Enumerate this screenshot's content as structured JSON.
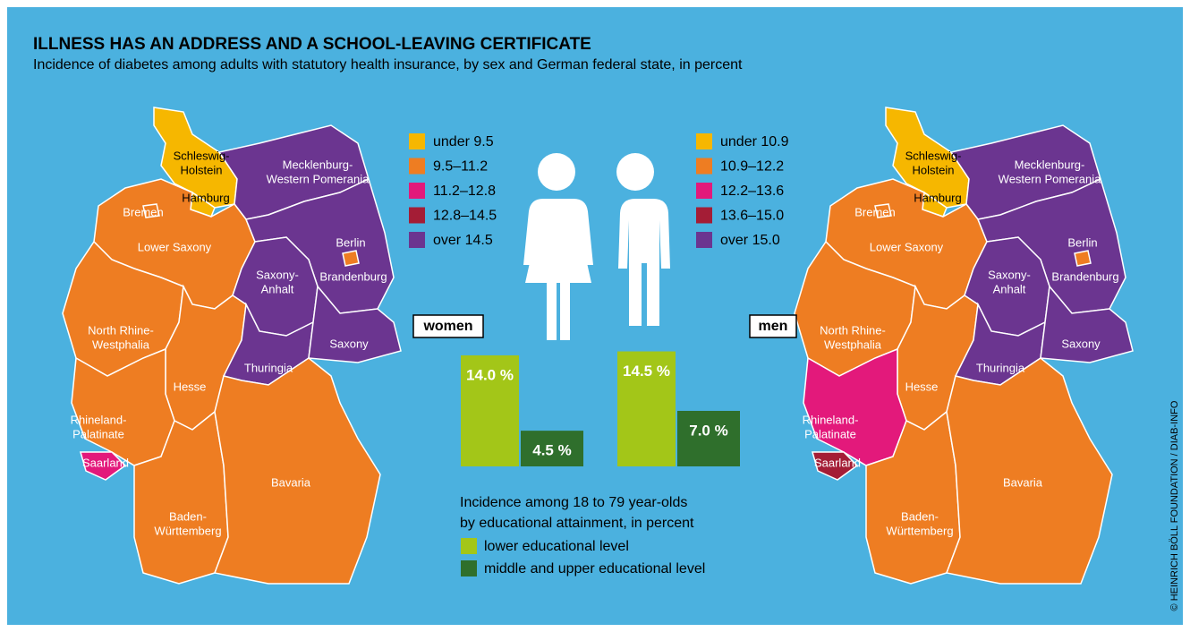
{
  "title": "ILLNESS HAS AN ADDRESS AND A SCHOOL-LEAVING CERTIFICATE",
  "subtitle": "Incidence of diabetes among adults with statutory health insurance, by sex and German federal state, in percent",
  "maps": [
    {
      "label": "women",
      "legend": [
        {
          "label": "under 9.5",
          "color": "#f6b700"
        },
        {
          "label": "9.5–11.2",
          "color": "#ee7d22"
        },
        {
          "label": "11.2–12.8",
          "color": "#e3197b"
        },
        {
          "label": "12.8–14.5",
          "color": "#a41d36"
        },
        {
          "label": "over 14.5",
          "color": "#6b3590"
        }
      ],
      "states": [
        {
          "name": [
            "Schleswig-",
            "Holstein"
          ],
          "class": 0
        },
        {
          "name": [
            "Hamburg"
          ],
          "class": 0
        },
        {
          "name": [
            "Mecklenburg-",
            "Western Pomerania"
          ],
          "class": 4
        },
        {
          "name": [
            "Lower Saxony"
          ],
          "class": 1
        },
        {
          "name": [
            "Bremen"
          ],
          "class": 1
        },
        {
          "name": [
            "Brandenburg"
          ],
          "class": 4
        },
        {
          "name": [
            "Berlin"
          ],
          "class": 1
        },
        {
          "name": [
            "Saxony-",
            "Anhalt"
          ],
          "class": 4
        },
        {
          "name": [
            "North Rhine-",
            "Westphalia"
          ],
          "class": 1
        },
        {
          "name": [
            "Hesse"
          ],
          "class": 1
        },
        {
          "name": [
            "Thuringia"
          ],
          "class": 4
        },
        {
          "name": [
            "Saxony"
          ],
          "class": 4
        },
        {
          "name": [
            "Rhineland-",
            "Palatinate"
          ],
          "class": 1
        },
        {
          "name": [
            "Saarland"
          ],
          "class": 2
        },
        {
          "name": [
            "Baden-",
            "Württemberg"
          ],
          "class": 1
        },
        {
          "name": [
            "Bavaria"
          ],
          "class": 1
        }
      ]
    },
    {
      "label": "men",
      "legend": [
        {
          "label": "under 10.9",
          "color": "#f6b700"
        },
        {
          "label": "10.9–12.2",
          "color": "#ee7d22"
        },
        {
          "label": "12.2–13.6",
          "color": "#e3197b"
        },
        {
          "label": "13.6–15.0",
          "color": "#a41d36"
        },
        {
          "label": "over 15.0",
          "color": "#6b3590"
        }
      ],
      "states": [
        {
          "name": [
            "Schleswig-",
            "Holstein"
          ],
          "class": 0
        },
        {
          "name": [
            "Hamburg"
          ],
          "class": 0
        },
        {
          "name": [
            "Mecklenburg-",
            "Western Pomerania"
          ],
          "class": 4
        },
        {
          "name": [
            "Lower Saxony"
          ],
          "class": 1
        },
        {
          "name": [
            "Bremen"
          ],
          "class": 1
        },
        {
          "name": [
            "Brandenburg"
          ],
          "class": 4
        },
        {
          "name": [
            "Berlin"
          ],
          "class": 1
        },
        {
          "name": [
            "Saxony-",
            "Anhalt"
          ],
          "class": 4
        },
        {
          "name": [
            "North Rhine-",
            "Westphalia"
          ],
          "class": 1
        },
        {
          "name": [
            "Hesse"
          ],
          "class": 1
        },
        {
          "name": [
            "Thuringia"
          ],
          "class": 4
        },
        {
          "name": [
            "Saxony"
          ],
          "class": 4
        },
        {
          "name": [
            "Rhineland-",
            "Palatinate"
          ],
          "class": 2
        },
        {
          "name": [
            "Saarland"
          ],
          "class": 3
        },
        {
          "name": [
            "Baden-",
            "Württemberg"
          ],
          "class": 1
        },
        {
          "name": [
            "Bavaria"
          ],
          "class": 1
        }
      ]
    }
  ],
  "bars": {
    "caption": [
      "Incidence among 18 to 79 year-olds",
      "by educational attainment, in percent"
    ],
    "series": [
      {
        "name": "lower educational level",
        "color": "#a3c618"
      },
      {
        "name": "middle and upper educational level",
        "color": "#2f6f2c"
      }
    ],
    "groups": [
      {
        "values": [
          14.0,
          4.5
        ],
        "value_labels": [
          "14.0 %",
          "4.5 %"
        ]
      },
      {
        "values": [
          14.5,
          7.0
        ],
        "value_labels": [
          "14.5 %",
          "7.0 %"
        ]
      }
    ]
  },
  "credit": "© HEINRICH BÖLL FOUNDATION / DIAB-INFO"
}
